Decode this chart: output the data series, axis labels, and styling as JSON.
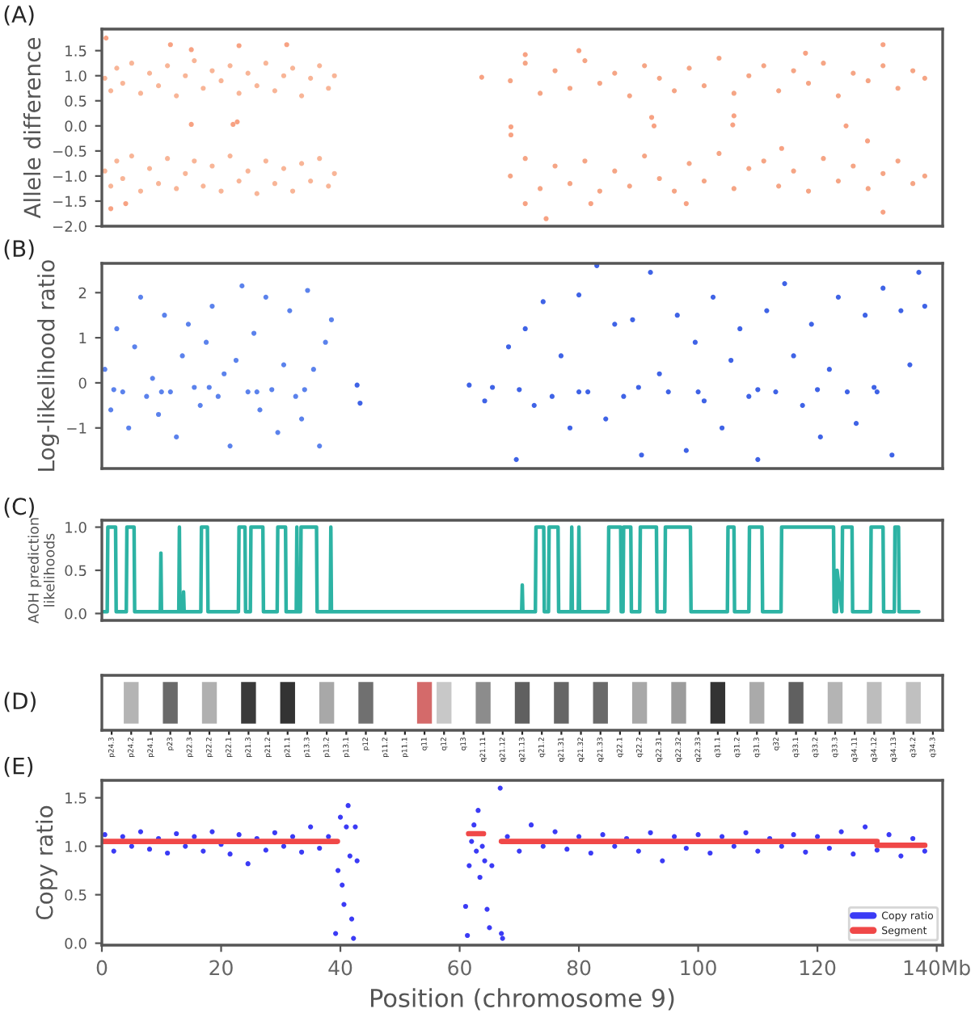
{
  "chart_data": [
    {
      "type": "scatter",
      "title": "(A)",
      "ylabel": "Allele difference",
      "marker": "circle",
      "tick_labels": "y",
      "xlim": [
        0,
        141
      ],
      "ylim": [
        -2.0,
        1.93
      ],
      "yticks": [
        {
          "value": -2.0,
          "label": "−2.0"
        },
        {
          "value": -1.5,
          "label": "−1.5"
        },
        {
          "value": -1.0,
          "label": "−1.0"
        },
        {
          "value": -0.5,
          "label": "−0.5"
        },
        {
          "value": 0,
          "label": "0.0"
        },
        0.5,
        {
          "value": 1,
          "label": "1.0"
        },
        1.5
      ],
      "series": [
        {
          "color": "#f8b597",
          "x": [
            0.5,
            1.5,
            2.5,
            3.5,
            5,
            6.5,
            8,
            9.5,
            11,
            12.5,
            14,
            15.5,
            17,
            18.5,
            20,
            21.5,
            23,
            24.5,
            26,
            27.5,
            29,
            30.5,
            32,
            33.5,
            35,
            36.5,
            38,
            39
          ],
          "values": [
            0.95,
            0.7,
            1.15,
            0.85,
            1.25,
            0.65,
            1.05,
            0.8,
            1.2,
            0.6,
            1.0,
            1.3,
            0.75,
            1.1,
            0.9,
            1.2,
            0.65,
            1.05,
            0.8,
            1.25,
            0.7,
            1.0,
            1.15,
            0.6,
            0.95,
            1.2,
            0.75,
            1.0
          ]
        },
        {
          "color": "#f8b597",
          "x": [
            0.5,
            1.5,
            2.5,
            3.5,
            5,
            6.5,
            8,
            9.5,
            11,
            12.5,
            14,
            15.5,
            17,
            18.5,
            20,
            21.5,
            23,
            24.5,
            26,
            27.5,
            29,
            30.5,
            32,
            33.5,
            35,
            36.5,
            38,
            39
          ],
          "values": [
            -0.9,
            -1.2,
            -0.7,
            -1.05,
            -0.6,
            -1.3,
            -0.85,
            -1.15,
            -0.65,
            -1.25,
            -0.95,
            -0.7,
            -1.2,
            -0.8,
            -1.3,
            -0.6,
            -1.1,
            -0.9,
            -1.35,
            -0.7,
            -1.15,
            -0.85,
            -1.3,
            -0.75,
            -1.1,
            -0.65,
            -1.2,
            -0.95
          ]
        },
        {
          "color": "#f5a585",
          "x": [
            68.5,
            71,
            73.5,
            76,
            78.5,
            81,
            83.5,
            86,
            88.5,
            91,
            93.5,
            96,
            98.5,
            101,
            103.5,
            106,
            108.5,
            111,
            113.5,
            116,
            118.5,
            121,
            123.5,
            126,
            128.5,
            131,
            133.5,
            136,
            138
          ],
          "values": [
            0.9,
            1.25,
            0.65,
            1.1,
            0.75,
            1.3,
            0.85,
            1.05,
            0.6,
            1.2,
            0.95,
            0.7,
            1.15,
            0.8,
            1.35,
            0.65,
            1.0,
            1.2,
            0.7,
            1.1,
            0.85,
            1.25,
            0.6,
            1.05,
            0.9,
            1.2,
            0.75,
            1.1,
            0.95
          ]
        },
        {
          "color": "#f5a585",
          "x": [
            68.5,
            71,
            73.5,
            76,
            78.5,
            81,
            83.5,
            86,
            88.5,
            91,
            93.5,
            96,
            98.5,
            101,
            103.5,
            106,
            108.5,
            111,
            113.5,
            116,
            118.5,
            121,
            123.5,
            126,
            128.5,
            131,
            133.5,
            136,
            138
          ],
          "values": [
            -1.0,
            -0.65,
            -1.25,
            -0.8,
            -1.15,
            -0.7,
            -1.3,
            -0.9,
            -1.2,
            -0.6,
            -1.05,
            -1.3,
            -0.75,
            -1.1,
            -0.55,
            -1.25,
            -0.85,
            -0.7,
            -1.2,
            -0.9,
            -1.3,
            -0.65,
            -1.1,
            -0.8,
            -1.25,
            -0.95,
            -0.7,
            -1.15,
            -1.0
          ]
        },
        {
          "color": "#f7a283",
          "x": [
            0.7,
            11.5,
            15,
            23,
            31,
            1.5,
            4,
            15,
            22.0,
            22.7,
            63.7,
            68.6,
            68.6,
            92.2,
            92.6,
            105.8,
            106,
            124.8,
            128.4,
            71,
            80,
            118,
            131,
            71,
            82,
            74.5,
            98,
            131,
            114
          ],
          "values": [
            1.75,
            1.62,
            1.52,
            1.6,
            1.62,
            -1.65,
            -1.55,
            0.03,
            0.03,
            0.08,
            0.97,
            -0.02,
            -0.18,
            0.17,
            0.0,
            0.02,
            0.2,
            0.0,
            -0.3,
            1.42,
            1.5,
            1.45,
            1.62,
            -1.55,
            -1.55,
            -1.85,
            -1.55,
            -1.72,
            -0.45
          ]
        }
      ]
    },
    {
      "type": "scatter",
      "title": "(B)",
      "ylabel": "Log-likelihood ratio",
      "marker": "circle",
      "tick_labels": "y",
      "xlim": [
        0,
        141
      ],
      "ylim": [
        -1.9,
        2.65
      ],
      "yticks": [
        {
          "value": -1,
          "label": "−1"
        },
        0,
        1,
        2
      ],
      "series": [
        {
          "color": "#5b82ec",
          "x": [
            0.5,
            1.5,
            2.5,
            3.5,
            4.5,
            5.5,
            6.5,
            7.5,
            8.5,
            9.5,
            10.5,
            11.5,
            12.5,
            13.5,
            14.5,
            15.5,
            16.5,
            17.5,
            18.5,
            19.5,
            20.5,
            21.5,
            22.5,
            23.5,
            24.5,
            25.5,
            26.5,
            27.5,
            28.5,
            29.5,
            30.5,
            31.5,
            32.5,
            33.5,
            34.5,
            35.5,
            36.5,
            37.5,
            38.5,
            2,
            10,
            18,
            26,
            34
          ],
          "values": [
            0.3,
            -0.6,
            1.2,
            -0.2,
            -1.0,
            0.8,
            1.9,
            -0.3,
            0.1,
            -0.7,
            1.5,
            -0.2,
            -1.2,
            0.6,
            1.3,
            -0.1,
            -0.5,
            0.9,
            1.7,
            -0.3,
            0.2,
            -1.4,
            0.5,
            2.15,
            -0.2,
            1.1,
            -0.6,
            1.9,
            -0.15,
            -1.1,
            0.4,
            1.6,
            -0.3,
            -0.8,
            2.05,
            0.3,
            -1.4,
            0.9,
            1.4,
            -0.15,
            -0.2,
            -0.1,
            -0.2,
            -0.15
          ]
        },
        {
          "color": "#3f63e6",
          "x": [
            42.8,
            43.3,
            61.6,
            64.2,
            65.5,
            68.2,
            69.5,
            71,
            72.5,
            74,
            75.5,
            77,
            78.5,
            80,
            81.5,
            83,
            84.5,
            86,
            87.5,
            89,
            90.5,
            92,
            93.5,
            95,
            96.5,
            98,
            99.5,
            101,
            102.5,
            104,
            105.5,
            107,
            108.5,
            110,
            111.5,
            113,
            114.5,
            116,
            117.5,
            119,
            120.5,
            122,
            123.5,
            125,
            126.5,
            128,
            129.5,
            131,
            132.5,
            134,
            135.5,
            137,
            138,
            70,
            80,
            90,
            100,
            110,
            120,
            130
          ],
          "values": [
            -0.05,
            -0.45,
            -0.05,
            -0.4,
            -0.1,
            0.8,
            -1.7,
            1.2,
            -0.5,
            1.8,
            -0.3,
            0.6,
            -1.0,
            1.95,
            -0.2,
            2.6,
            -0.8,
            1.3,
            -0.3,
            1.4,
            -1.6,
            2.45,
            0.2,
            -0.2,
            1.5,
            -1.5,
            0.9,
            -0.4,
            1.9,
            -1.0,
            0.5,
            1.2,
            -0.3,
            -1.7,
            1.6,
            -0.2,
            2.2,
            0.6,
            -0.5,
            1.3,
            -1.2,
            0.3,
            1.9,
            -0.2,
            -0.9,
            1.5,
            -0.1,
            2.1,
            -1.6,
            1.6,
            0.4,
            2.45,
            1.7,
            -0.15,
            -0.2,
            -0.1,
            -0.2,
            -0.15,
            -0.15,
            -0.2
          ]
        }
      ]
    },
    {
      "type": "line",
      "title": "(C)",
      "ylabel": "AOH prediction\nlikelihoods",
      "tick_labels": "y",
      "xlim": [
        0,
        141
      ],
      "ylim": [
        -0.08,
        1.08
      ],
      "yticks": [
        {
          "value": 0,
          "label": "0.0"
        },
        0.5,
        {
          "value": 1,
          "label": "1.0"
        }
      ],
      "series": [
        {
          "color": "#2db3a4",
          "x": [
            0.3,
            0.9,
            1.0,
            2.3,
            2.4,
            4.1,
            4.2,
            5.4,
            5.5,
            9.8,
            9.9,
            10.0,
            12.9,
            13.0,
            13.1,
            13.6,
            13.7,
            13.8,
            16.6,
            16.7,
            17.7,
            17.8,
            22.9,
            23.0,
            24.0,
            24.1,
            24.9,
            25.0,
            27.0,
            27.1,
            29.4,
            29.5,
            30.8,
            30.9,
            32.6,
            32.7,
            32.8,
            33.3,
            33.4,
            36.0,
            36.1,
            38.3,
            38.4,
            38.5,
            70.4,
            70.5,
            70.6,
            72.7,
            72.8,
            74.1,
            74.2,
            74.9,
            75.0,
            76.5,
            76.6,
            78.7,
            78.8,
            78.9,
            79.9,
            80.0,
            80.1,
            84.9,
            85.0,
            87.0,
            87.1,
            87.4,
            87.5,
            88.7,
            88.8,
            90.2,
            90.3,
            93.0,
            93.1,
            94.4,
            94.5,
            98.7,
            98.8,
            104.9,
            105.0,
            106.0,
            106.1,
            108.5,
            108.6,
            110.7,
            110.8,
            113.9,
            114.0,
            122.7,
            122.8,
            123.2,
            123.3,
            124.1,
            124.2,
            125.8,
            125.9,
            128.9,
            129.0,
            131.0,
            131.1,
            132.9,
            133.0,
            133.6,
            133.7,
            137.0
          ],
          "values": [
            0.02,
            0.02,
            1.0,
            1.0,
            0.02,
            0.02,
            1.0,
            1.0,
            0.02,
            0.02,
            0.7,
            0.02,
            0.02,
            1.0,
            0.02,
            0.02,
            0.25,
            0.02,
            0.02,
            1.0,
            1.0,
            0.02,
            0.02,
            1.0,
            1.0,
            0.02,
            0.02,
            1.0,
            1.0,
            0.02,
            0.02,
            1.0,
            1.0,
            0.02,
            0.02,
            1.0,
            0.02,
            0.02,
            1.0,
            1.0,
            0.02,
            0.02,
            1.0,
            0.02,
            0.02,
            0.33,
            0.02,
            0.02,
            1.0,
            1.0,
            0.02,
            0.02,
            1.0,
            1.0,
            0.02,
            0.02,
            1.0,
            0.02,
            0.02,
            1.0,
            0.02,
            0.02,
            1.0,
            1.0,
            0.02,
            0.02,
            1.0,
            1.0,
            0.02,
            0.02,
            1.0,
            1.0,
            0.02,
            0.02,
            1.0,
            1.0,
            0.02,
            0.02,
            1.0,
            1.0,
            0.02,
            0.02,
            1.0,
            1.0,
            0.02,
            0.02,
            1.0,
            1.0,
            0.02,
            0.02,
            0.5,
            0.02,
            1.0,
            1.0,
            0.02,
            0.02,
            1.0,
            1.0,
            0.02,
            0.02,
            1.0,
            1.0,
            0.02,
            0.02
          ]
        }
      ]
    },
    {
      "type": "other",
      "title": "(D)",
      "categories": [
        "p24.3",
        "p24.2",
        "p24.1",
        "p23",
        "p22.3",
        "p22.2",
        "p22.1",
        "p21.3",
        "p21.2",
        "p21.1",
        "p13.3",
        "p13.2",
        "p13.1",
        "p12",
        "p11.2",
        "p11.1",
        "q11",
        "q12",
        "q13",
        "q21.11",
        "q21.12",
        "q21.13",
        "q21.2",
        "q21.31",
        "q21.32",
        "q21.33",
        "q22.1",
        "q22.2",
        "q22.31",
        "q22.32",
        "q22.33",
        "q31.1",
        "q31.2",
        "q31.3",
        "q32",
        "q33.1",
        "q33.2",
        "q33.3",
        "q34.11",
        "q34.12",
        "q34.13",
        "q34.2",
        "q34.3"
      ],
      "colors": [
        "#ffffff",
        "#b4b4b4",
        "#ffffff",
        "#6a6a6a",
        "#ffffff",
        "#b0b0b0",
        "#ffffff",
        "#3a3a3a",
        "#ffffff",
        "#333333",
        "#ffffff",
        "#a8a8a8",
        "#ffffff",
        "#707070",
        "#ffffff",
        "#ffffff",
        "#d46a6a",
        "#c8c8c8",
        "#ffffff",
        "#8c8c8c",
        "#ffffff",
        "#606060",
        "#ffffff",
        "#666666",
        "#ffffff",
        "#6a6a6a",
        "#ffffff",
        "#a8a8a8",
        "#ffffff",
        "#9c9c9c",
        "#ffffff",
        "#333333",
        "#ffffff",
        "#aaaaaa",
        "#ffffff",
        "#606060",
        "#ffffff",
        "#b4b4b4",
        "#ffffff",
        "#bdbdbd",
        "#ffffff",
        "#c0c0c0",
        "#ffffff"
      ]
    },
    {
      "type": "scatter",
      "title": "(E)",
      "xlabel": "Position (chromosome 9)",
      "ylabel": "Copy ratio",
      "marker": "circle",
      "legend": "bottom right",
      "xlim": [
        0,
        141
      ],
      "ylim": [
        -0.02,
        1.68
      ],
      "xticks": [
        0,
        20,
        40,
        60,
        80,
        100,
        120,
        {
          "value": 140,
          "label": "140Mb"
        }
      ],
      "yticks": [
        {
          "value": 0,
          "label": "0.0"
        },
        0.5,
        {
          "value": 1,
          "label": "1.0"
        },
        1.5
      ],
      "series": [
        {
          "name": "Copy ratio",
          "color": "#3b3bf5",
          "x": [
            0.5,
            2,
            3.5,
            5,
            6.5,
            8,
            9.5,
            11,
            12.5,
            14,
            15.5,
            17,
            18.5,
            20,
            21.5,
            23,
            24.5,
            26,
            27.5,
            29,
            30.5,
            32,
            33.5,
            35,
            36.5,
            38,
            39.2,
            39.6,
            40,
            40.3,
            40.6,
            41,
            41.3,
            41.6,
            41.9,
            42.2,
            42.5,
            42.8,
            61,
            61.3,
            61.6,
            62,
            62.4,
            62.8,
            63.1,
            63.4,
            63.8,
            64.2,
            64.6,
            65,
            65.4,
            66.8,
            67,
            67.2,
            68,
            70,
            72,
            74,
            76,
            78,
            80,
            82,
            84,
            86,
            88,
            90,
            92,
            94,
            96,
            98,
            100,
            102,
            104,
            106,
            108,
            110,
            112,
            114,
            116,
            118,
            120,
            122,
            124,
            126,
            128,
            130,
            132,
            134,
            136,
            138
          ],
          "values": [
            1.12,
            0.95,
            1.1,
            1.0,
            1.15,
            0.97,
            1.08,
            0.93,
            1.13,
            1.0,
            1.1,
            0.95,
            1.15,
            1.02,
            0.92,
            1.12,
            0.82,
            1.08,
            0.96,
            1.14,
            1.0,
            1.1,
            0.94,
            1.2,
            0.98,
            1.1,
            0.1,
            0.75,
            1.3,
            0.6,
            0.4,
            1.2,
            1.42,
            0.9,
            0.25,
            0.05,
            1.2,
            0.85,
            0.38,
            0.08,
            0.8,
            1.05,
            1.22,
            0.95,
            1.37,
            0.68,
            1.0,
            0.85,
            0.35,
            0.16,
            0.8,
            1.6,
            0.1,
            0.05,
            1.1,
            0.95,
            1.22,
            1.0,
            1.15,
            0.97,
            1.1,
            0.93,
            1.12,
            1.0,
            1.08,
            0.95,
            1.14,
            0.85,
            1.1,
            0.98,
            1.12,
            0.93,
            1.1,
            1.0,
            1.14,
            0.95,
            1.08,
            1.0,
            1.12,
            0.94,
            1.1,
            0.98,
            1.15,
            0.92,
            1.2,
            0.96,
            1.12,
            0.9,
            1.08,
            0.95
          ]
        },
        {
          "name": "Segment",
          "type": "line",
          "marker": "none",
          "color": "#f04848",
          "x": [
            0,
            39.5
          ],
          "values": [
            1.05,
            1.05
          ]
        },
        {
          "type": "line",
          "marker": "none",
          "color": "#f04848",
          "x": [
            61.5,
            64
          ],
          "values": [
            1.13,
            1.13
          ]
        },
        {
          "type": "line",
          "marker": "none",
          "color": "#f04848",
          "x": [
            67,
            130
          ],
          "values": [
            1.05,
            1.05
          ]
        },
        {
          "type": "line",
          "marker": "none",
          "color": "#f04848",
          "x": [
            130,
            138
          ],
          "values": [
            1.01,
            1.01
          ]
        }
      ]
    }
  ]
}
